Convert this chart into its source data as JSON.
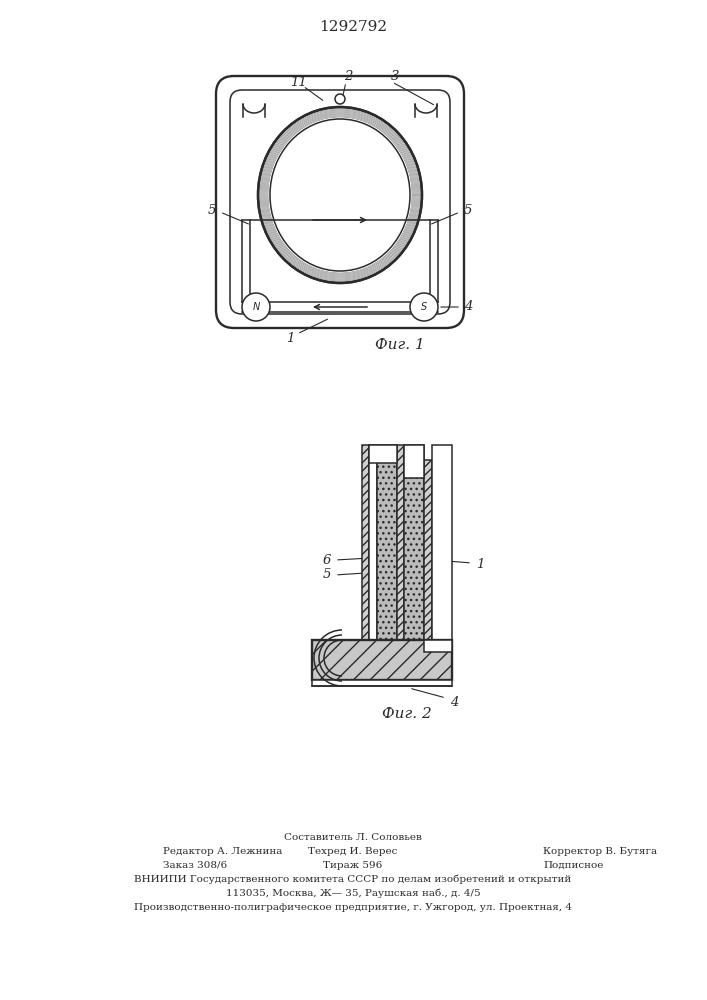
{
  "title": "1292792",
  "fig1_label": "Фиг. 1",
  "fig2_label": "Фиг. 2",
  "bg_color": "#ffffff",
  "line_color": "#2a2a2a",
  "footer_line0": "Составитель Л. Соловьев",
  "footer_col1_r2": "Редактор А. Лежнина",
  "footer_col2_r2": "Техред И. Верес",
  "footer_col3_r2": "Корректор В. Бутяга",
  "footer_col1_r3": "Заказ 308/6",
  "footer_col2_r3": "Тираж 596",
  "footer_col3_r3": "Подписное",
  "footer_line3": "ВНИИПИ Государственного комитета СССР по делам изобретений и открытий",
  "footer_line4": "113035, Москва, Ж— 35, Раушская наб., д. 4/5",
  "footer_line5": "Производственно-полиграфическое предприятие, г. Ужгород, ул. Проектная, 4"
}
